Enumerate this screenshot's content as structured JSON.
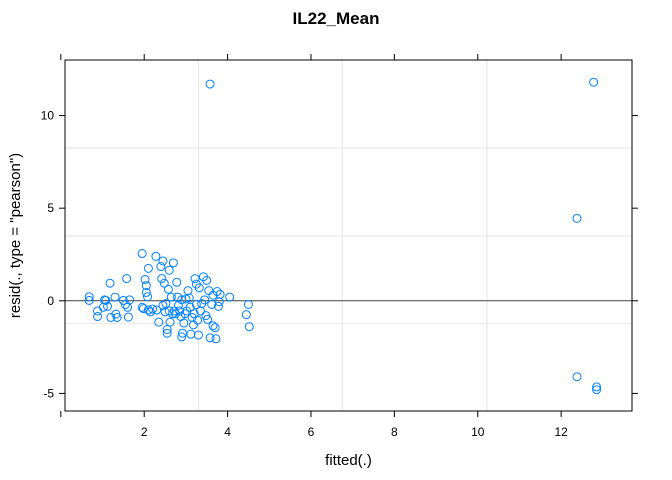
{
  "chart_data": {
    "type": "scatter",
    "title": "IL22_Mean",
    "xlabel": "fitted(.)",
    "ylabel": "resid(., type = \"pearson\")",
    "xlim": [
      0.1,
      13.7
    ],
    "ylim": [
      -5.95,
      13.0
    ],
    "x_ticks": [
      2,
      4,
      6,
      8,
      10,
      12
    ],
    "y_ticks": [
      -5,
      0,
      5,
      10
    ],
    "grid_x": [
      3.3,
      6.75,
      10.22
    ],
    "grid_y": [
      -1.22,
      3.5,
      8.25
    ],
    "reference_line_y": 0,
    "point_color": "#0080ff",
    "points": [
      [
        0.68,
        0.22
      ],
      [
        0.68,
        0.02
      ],
      [
        0.88,
        -0.55
      ],
      [
        0.88,
        -0.85
      ],
      [
        1.02,
        -0.35
      ],
      [
        1.05,
        0.05
      ],
      [
        1.08,
        0.02
      ],
      [
        1.12,
        -0.3
      ],
      [
        1.18,
        0.95
      ],
      [
        1.2,
        -0.9
      ],
      [
        1.3,
        0.2
      ],
      [
        1.32,
        -0.72
      ],
      [
        1.35,
        -0.9
      ],
      [
        1.5,
        0.02
      ],
      [
        1.55,
        -0.2
      ],
      [
        1.58,
        1.2
      ],
      [
        1.6,
        -0.35
      ],
      [
        1.62,
        -0.88
      ],
      [
        1.65,
        0.05
      ],
      [
        1.95,
        2.55
      ],
      [
        1.95,
        -0.35
      ],
      [
        1.98,
        -0.42
      ],
      [
        2.02,
        1.15
      ],
      [
        2.05,
        0.82
      ],
      [
        2.05,
        0.45
      ],
      [
        2.08,
        0.22
      ],
      [
        2.1,
        1.75
      ],
      [
        2.1,
        -0.5
      ],
      [
        2.15,
        -0.6
      ],
      [
        2.2,
        -0.45
      ],
      [
        2.28,
        2.4
      ],
      [
        2.3,
        -0.5
      ],
      [
        2.35,
        -1.15
      ],
      [
        2.4,
        1.85
      ],
      [
        2.42,
        1.2
      ],
      [
        2.45,
        2.15
      ],
      [
        2.45,
        -0.25
      ],
      [
        2.48,
        0.95
      ],
      [
        2.5,
        -0.6
      ],
      [
        2.52,
        -0.15
      ],
      [
        2.55,
        -1.55
      ],
      [
        2.55,
        -1.75
      ],
      [
        2.58,
        0.62
      ],
      [
        2.6,
        1.65
      ],
      [
        2.6,
        -0.55
      ],
      [
        2.62,
        -1.15
      ],
      [
        2.65,
        0.2
      ],
      [
        2.68,
        -0.7
      ],
      [
        2.7,
        2.05
      ],
      [
        2.72,
        -0.55
      ],
      [
        2.75,
        -0.7
      ],
      [
        2.78,
        1.0
      ],
      [
        2.8,
        0.2
      ],
      [
        2.82,
        -0.25
      ],
      [
        2.85,
        -0.55
      ],
      [
        2.88,
        -0.85
      ],
      [
        2.9,
        0.05
      ],
      [
        2.9,
        -1.95
      ],
      [
        2.92,
        -1.75
      ],
      [
        2.95,
        -1.2
      ],
      [
        2.98,
        -0.7
      ],
      [
        3.0,
        0.1
      ],
      [
        3.02,
        -0.55
      ],
      [
        3.05,
        0.55
      ],
      [
        3.08,
        0.15
      ],
      [
        3.1,
        -0.35
      ],
      [
        3.12,
        -1.8
      ],
      [
        3.15,
        -0.9
      ],
      [
        3.18,
        -1.3
      ],
      [
        3.2,
        -0.7
      ],
      [
        3.22,
        1.2
      ],
      [
        3.25,
        0.9
      ],
      [
        3.25,
        -0.2
      ],
      [
        3.28,
        -1.05
      ],
      [
        3.3,
        -1.85
      ],
      [
        3.32,
        0.7
      ],
      [
        3.35,
        -0.55
      ],
      [
        3.38,
        -0.15
      ],
      [
        3.42,
        1.3
      ],
      [
        3.45,
        0.05
      ],
      [
        3.48,
        -0.8
      ],
      [
        3.5,
        1.1
      ],
      [
        3.52,
        -1.0
      ],
      [
        3.55,
        0.55
      ],
      [
        3.58,
        11.7
      ],
      [
        3.58,
        -2.0
      ],
      [
        3.62,
        -0.2
      ],
      [
        3.65,
        -1.35
      ],
      [
        3.65,
        0.3
      ],
      [
        3.7,
        -1.45
      ],
      [
        3.72,
        -2.05
      ],
      [
        3.75,
        0.5
      ],
      [
        3.78,
        -0.3
      ],
      [
        3.8,
        -0.05
      ],
      [
        3.82,
        0.35
      ],
      [
        4.05,
        0.2
      ],
      [
        4.45,
        -0.75
      ],
      [
        4.5,
        -0.2
      ],
      [
        4.52,
        -1.4
      ],
      [
        12.38,
        4.45
      ],
      [
        12.38,
        -4.1
      ],
      [
        12.78,
        11.8
      ],
      [
        12.85,
        -4.65
      ],
      [
        12.85,
        -4.8
      ]
    ]
  }
}
